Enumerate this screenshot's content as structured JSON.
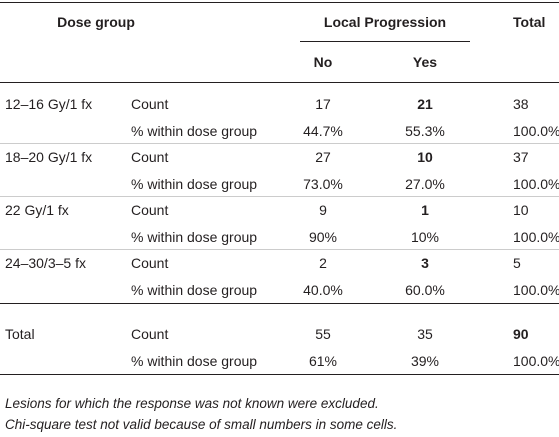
{
  "header": {
    "dose_group": "Dose group",
    "local_progression": "Local Progression",
    "no": "No",
    "yes": "Yes",
    "total": "Total"
  },
  "table": {
    "groups": [
      {
        "label": "12–16 Gy/1 fx",
        "rows": [
          {
            "measure": "Count",
            "values": [
              "17",
              "21",
              "38"
            ]
          },
          {
            "measure": "% within dose group",
            "values": [
              "44.7%",
              "55.3%",
              "100.0%"
            ]
          }
        ]
      },
      {
        "label": "18–20 Gy/1 fx",
        "rows": [
          {
            "measure": "Count",
            "values": [
              "27",
              "10",
              "37"
            ]
          },
          {
            "measure": "% within dose group",
            "values": [
              "73.0%",
              "27.0%",
              "100.0%"
            ]
          }
        ]
      },
      {
        "label": "22 Gy/1 fx",
        "rows": [
          {
            "measure": "Count",
            "values": [
              "9",
              "1",
              "10"
            ]
          },
          {
            "measure": "% within dose group",
            "values": [
              "90%",
              "10%",
              "100.0%"
            ]
          }
        ]
      },
      {
        "label": "24–30/3–5 fx",
        "rows": [
          {
            "measure": "Count",
            "values": [
              "2",
              "3",
              "5"
            ]
          },
          {
            "measure": "% within dose group",
            "values": [
              "40.0%",
              "60.0%",
              "100.0%"
            ]
          }
        ]
      }
    ],
    "total": {
      "label": "Total",
      "rows": [
        {
          "measure": "Count",
          "values": [
            "55",
            "35",
            "90"
          ]
        },
        {
          "measure": "% within dose group",
          "values": [
            "61%",
            "39%",
            "100.0%"
          ]
        }
      ]
    }
  },
  "notes": [
    "Lesions for which the response was not known were excluded.",
    "Chi-square test not valid because of small numbers in some cells."
  ]
}
